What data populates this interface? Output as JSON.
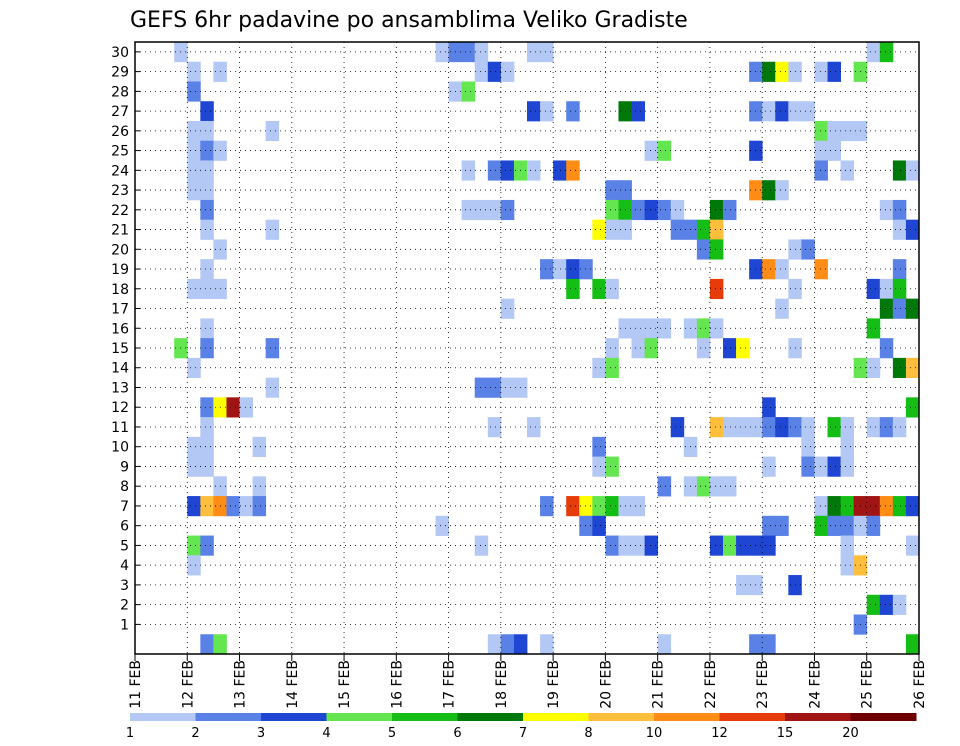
{
  "chart_data": {
    "type": "heatmap",
    "title": "GEFS 6hr padavine po ansamblima Veliko Gradiste",
    "xlabel": "",
    "ylabel": "",
    "x_tick_labels": [
      "11 FEB",
      "12 FEB",
      "13 FEB",
      "14 FEB",
      "15 FEB",
      "16 FEB",
      "17 FEB",
      "18 FEB",
      "19 FEB",
      "20 FEB",
      "21 FEB",
      "22 FEB",
      "23 FEB",
      "24 FEB",
      "25 FEB",
      "26 FEB"
    ],
    "y_tick_labels": [
      "1",
      "2",
      "3",
      "4",
      "5",
      "6",
      "7",
      "8",
      "9",
      "10",
      "11",
      "12",
      "13",
      "14",
      "15",
      "16",
      "17",
      "18",
      "19",
      "20",
      "21",
      "22",
      "23",
      "24",
      "25",
      "26",
      "27",
      "28",
      "29",
      "30"
    ],
    "time_steps_per_day": 4,
    "n_steps": 60,
    "members": 30,
    "grid": true,
    "legend_position": "bottom",
    "legend_labels": [
      "1",
      "2",
      "3",
      "4",
      "5",
      "6",
      "7",
      "8",
      "10",
      "12",
      "15",
      "20"
    ],
    "colors": {
      "1": "#b4c8f5",
      "2": "#5a82e6",
      "3": "#1e46d2",
      "4": "#64e650",
      "5": "#14be14",
      "6": "#00780a",
      "7": "#ffff00",
      "8": "#ffbe3c",
      "10": "#ff8c14",
      "12": "#e63c0a",
      "15": "#a01414",
      "20": "#6e0000"
    },
    "cells": [
      [
        30,
        4,
        1
      ],
      [
        30,
        24,
        1
      ],
      [
        30,
        25,
        2
      ],
      [
        30,
        26,
        2
      ],
      [
        30,
        27,
        1
      ],
      [
        30,
        31,
        1
      ],
      [
        30,
        32,
        1
      ],
      [
        30,
        57,
        1
      ],
      [
        30,
        58,
        5
      ],
      [
        29,
        5,
        1
      ],
      [
        29,
        7,
        1
      ],
      [
        29,
        27,
        1
      ],
      [
        29,
        28,
        3
      ],
      [
        29,
        29,
        1
      ],
      [
        29,
        48,
        2
      ],
      [
        29,
        49,
        6
      ],
      [
        29,
        50,
        7
      ],
      [
        29,
        51,
        1
      ],
      [
        29,
        53,
        1
      ],
      [
        29,
        54,
        3
      ],
      [
        29,
        56,
        4
      ],
      [
        28,
        5,
        2
      ],
      [
        28,
        25,
        1
      ],
      [
        28,
        26,
        4
      ],
      [
        27,
        6,
        3
      ],
      [
        27,
        31,
        3
      ],
      [
        27,
        32,
        1
      ],
      [
        27,
        34,
        2
      ],
      [
        27,
        38,
        6
      ],
      [
        27,
        39,
        3
      ],
      [
        27,
        48,
        2
      ],
      [
        27,
        49,
        1
      ],
      [
        27,
        50,
        3
      ],
      [
        27,
        51,
        1
      ],
      [
        27,
        52,
        1
      ],
      [
        26,
        5,
        1
      ],
      [
        26,
        6,
        1
      ],
      [
        26,
        11,
        1
      ],
      [
        26,
        53,
        4
      ],
      [
        26,
        54,
        1
      ],
      [
        26,
        55,
        1
      ],
      [
        26,
        56,
        1
      ],
      [
        25,
        5,
        1
      ],
      [
        25,
        6,
        2
      ],
      [
        25,
        7,
        1
      ],
      [
        25,
        40,
        1
      ],
      [
        25,
        41,
        4
      ],
      [
        25,
        48,
        3
      ],
      [
        25,
        53,
        1
      ],
      [
        25,
        54,
        1
      ],
      [
        24,
        5,
        1
      ],
      [
        24,
        6,
        1
      ],
      [
        24,
        26,
        1
      ],
      [
        24,
        28,
        2
      ],
      [
        24,
        29,
        3
      ],
      [
        24,
        30,
        4
      ],
      [
        24,
        31,
        1
      ],
      [
        24,
        33,
        3
      ],
      [
        24,
        34,
        10
      ],
      [
        24,
        53,
        2
      ],
      [
        24,
        55,
        1
      ],
      [
        24,
        59,
        6
      ],
      [
        24,
        60,
        1
      ],
      [
        23,
        5,
        1
      ],
      [
        23,
        6,
        1
      ],
      [
        23,
        37,
        2
      ],
      [
        23,
        38,
        2
      ],
      [
        23,
        48,
        10
      ],
      [
        23,
        49,
        6
      ],
      [
        23,
        50,
        1
      ],
      [
        22,
        6,
        2
      ],
      [
        22,
        26,
        1
      ],
      [
        22,
        27,
        1
      ],
      [
        22,
        28,
        1
      ],
      [
        22,
        29,
        2
      ],
      [
        22,
        37,
        4
      ],
      [
        22,
        38,
        5
      ],
      [
        22,
        39,
        2
      ],
      [
        22,
        40,
        3
      ],
      [
        22,
        41,
        2
      ],
      [
        22,
        42,
        1
      ],
      [
        22,
        45,
        6
      ],
      [
        22,
        46,
        2
      ],
      [
        22,
        58,
        1
      ],
      [
        22,
        59,
        2
      ],
      [
        21,
        6,
        1
      ],
      [
        21,
        11,
        1
      ],
      [
        21,
        36,
        7
      ],
      [
        21,
        37,
        1
      ],
      [
        21,
        38,
        1
      ],
      [
        21,
        42,
        2
      ],
      [
        21,
        43,
        2
      ],
      [
        21,
        44,
        5
      ],
      [
        21,
        45,
        8
      ],
      [
        21,
        59,
        1
      ],
      [
        21,
        60,
        3
      ],
      [
        20,
        7,
        1
      ],
      [
        20,
        44,
        2
      ],
      [
        20,
        45,
        5
      ],
      [
        20,
        51,
        1
      ],
      [
        20,
        52,
        2
      ],
      [
        19,
        6,
        1
      ],
      [
        19,
        32,
        2
      ],
      [
        19,
        33,
        1
      ],
      [
        19,
        34,
        3
      ],
      [
        19,
        35,
        2
      ],
      [
        19,
        48,
        3
      ],
      [
        19,
        49,
        10
      ],
      [
        19,
        50,
        1
      ],
      [
        19,
        53,
        10
      ],
      [
        19,
        59,
        2
      ],
      [
        18,
        5,
        1
      ],
      [
        18,
        6,
        1
      ],
      [
        18,
        7,
        1
      ],
      [
        18,
        34,
        5
      ],
      [
        18,
        36,
        5
      ],
      [
        18,
        37,
        1
      ],
      [
        18,
        45,
        12
      ],
      [
        18,
        51,
        1
      ],
      [
        18,
        57,
        3
      ],
      [
        18,
        58,
        1
      ],
      [
        18,
        59,
        5
      ],
      [
        17,
        29,
        1
      ],
      [
        17,
        50,
        1
      ],
      [
        17,
        58,
        6
      ],
      [
        17,
        59,
        2
      ],
      [
        17,
        60,
        6
      ],
      [
        16,
        6,
        1
      ],
      [
        16,
        38,
        1
      ],
      [
        16,
        39,
        1
      ],
      [
        16,
        40,
        1
      ],
      [
        16,
        41,
        1
      ],
      [
        16,
        43,
        1
      ],
      [
        16,
        44,
        4
      ],
      [
        16,
        45,
        1
      ],
      [
        16,
        57,
        5
      ],
      [
        15,
        4,
        4
      ],
      [
        15,
        6,
        2
      ],
      [
        15,
        11,
        2
      ],
      [
        15,
        37,
        1
      ],
      [
        15,
        39,
        1
      ],
      [
        15,
        40,
        4
      ],
      [
        15,
        44,
        1
      ],
      [
        15,
        46,
        3
      ],
      [
        15,
        47,
        7
      ],
      [
        15,
        51,
        1
      ],
      [
        15,
        58,
        2
      ],
      [
        14,
        5,
        1
      ],
      [
        14,
        36,
        1
      ],
      [
        14,
        37,
        4
      ],
      [
        14,
        56,
        4
      ],
      [
        14,
        57,
        1
      ],
      [
        14,
        59,
        6
      ],
      [
        14,
        60,
        8
      ],
      [
        13,
        11,
        1
      ],
      [
        13,
        27,
        2
      ],
      [
        13,
        28,
        2
      ],
      [
        13,
        29,
        1
      ],
      [
        13,
        30,
        1
      ],
      [
        12,
        6,
        2
      ],
      [
        12,
        7,
        7
      ],
      [
        12,
        8,
        15
      ],
      [
        12,
        9,
        1
      ],
      [
        12,
        49,
        3
      ],
      [
        12,
        60,
        5
      ],
      [
        11,
        6,
        1
      ],
      [
        11,
        28,
        1
      ],
      [
        11,
        31,
        1
      ],
      [
        11,
        42,
        3
      ],
      [
        11,
        45,
        8
      ],
      [
        11,
        46,
        1
      ],
      [
        11,
        47,
        1
      ],
      [
        11,
        48,
        1
      ],
      [
        11,
        49,
        2
      ],
      [
        11,
        50,
        3
      ],
      [
        11,
        51,
        2
      ],
      [
        11,
        52,
        1
      ],
      [
        11,
        54,
        5
      ],
      [
        11,
        55,
        1
      ],
      [
        11,
        57,
        1
      ],
      [
        11,
        58,
        2
      ],
      [
        11,
        59,
        1
      ],
      [
        10,
        5,
        1
      ],
      [
        10,
        6,
        1
      ],
      [
        10,
        10,
        1
      ],
      [
        10,
        36,
        2
      ],
      [
        10,
        43,
        1
      ],
      [
        10,
        52,
        1
      ],
      [
        10,
        55,
        1
      ],
      [
        9,
        5,
        1
      ],
      [
        9,
        6,
        1
      ],
      [
        9,
        36,
        1
      ],
      [
        9,
        37,
        4
      ],
      [
        9,
        49,
        1
      ],
      [
        9,
        52,
        2
      ],
      [
        9,
        53,
        1
      ],
      [
        9,
        54,
        3
      ],
      [
        9,
        55,
        1
      ],
      [
        8,
        7,
        1
      ],
      [
        8,
        10,
        1
      ],
      [
        8,
        41,
        2
      ],
      [
        8,
        43,
        1
      ],
      [
        8,
        44,
        4
      ],
      [
        8,
        45,
        1
      ],
      [
        8,
        46,
        1
      ],
      [
        7,
        5,
        3
      ],
      [
        7,
        6,
        8
      ],
      [
        7,
        7,
        10
      ],
      [
        7,
        8,
        2
      ],
      [
        7,
        9,
        1
      ],
      [
        7,
        10,
        2
      ],
      [
        7,
        32,
        2
      ],
      [
        7,
        34,
        12
      ],
      [
        7,
        35,
        7
      ],
      [
        7,
        36,
        4
      ],
      [
        7,
        37,
        5
      ],
      [
        7,
        38,
        1
      ],
      [
        7,
        39,
        1
      ],
      [
        7,
        53,
        1
      ],
      [
        7,
        54,
        6
      ],
      [
        7,
        55,
        5
      ],
      [
        7,
        56,
        15
      ],
      [
        7,
        57,
        15
      ],
      [
        7,
        58,
        10
      ],
      [
        7,
        59,
        5
      ],
      [
        7,
        60,
        3
      ],
      [
        6,
        24,
        1
      ],
      [
        6,
        35,
        2
      ],
      [
        6,
        36,
        3
      ],
      [
        6,
        49,
        2
      ],
      [
        6,
        50,
        2
      ],
      [
        6,
        53,
        5
      ],
      [
        6,
        54,
        2
      ],
      [
        6,
        55,
        2
      ],
      [
        6,
        56,
        1
      ],
      [
        6,
        57,
        2
      ],
      [
        5,
        5,
        4
      ],
      [
        5,
        6,
        2
      ],
      [
        5,
        27,
        1
      ],
      [
        5,
        37,
        2
      ],
      [
        5,
        38,
        1
      ],
      [
        5,
        39,
        1
      ],
      [
        5,
        40,
        3
      ],
      [
        5,
        45,
        3
      ],
      [
        5,
        46,
        4
      ],
      [
        5,
        47,
        3
      ],
      [
        5,
        48,
        3
      ],
      [
        5,
        49,
        3
      ],
      [
        5,
        55,
        1
      ],
      [
        5,
        60,
        1
      ],
      [
        4,
        5,
        1
      ],
      [
        4,
        55,
        1
      ],
      [
        4,
        56,
        8
      ],
      [
        3,
        47,
        1
      ],
      [
        3,
        48,
        1
      ],
      [
        3,
        51,
        3
      ],
      [
        2,
        57,
        5
      ],
      [
        2,
        58,
        3
      ],
      [
        2,
        59,
        1
      ],
      [
        1,
        56,
        2
      ],
      [
        0,
        6,
        2
      ],
      [
        0,
        7,
        4
      ],
      [
        0,
        28,
        1
      ],
      [
        0,
        29,
        2
      ],
      [
        0,
        30,
        3
      ],
      [
        0,
        32,
        1
      ],
      [
        0,
        41,
        1
      ],
      [
        0,
        48,
        2
      ],
      [
        0,
        49,
        2
      ],
      [
        0,
        60,
        5
      ]
    ]
  }
}
